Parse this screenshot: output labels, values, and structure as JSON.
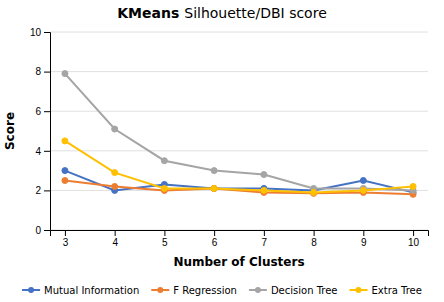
{
  "chart_data": {
    "type": "line",
    "title": "KMeans",
    "subtitle": "Silhouette/DBI score",
    "x_label": "Number of Clusters",
    "y_label": "Score",
    "x": [
      3,
      4,
      5,
      6,
      7,
      8,
      9,
      10
    ],
    "series": [
      {
        "name": "Mutual Information",
        "color": "#4472C4",
        "values": [
          3.0,
          2.0,
          2.3,
          2.1,
          2.1,
          2.0,
          2.5,
          1.9
        ]
      },
      {
        "name": "F Regression",
        "color": "#ED7D31",
        "values": [
          2.5,
          2.2,
          2.0,
          2.1,
          1.9,
          1.85,
          1.9,
          1.8
        ]
      },
      {
        "name": "Decision Tree",
        "color": "#A5A5A5",
        "values": [
          7.9,
          5.1,
          3.5,
          3.0,
          2.8,
          2.1,
          2.1,
          2.0
        ]
      },
      {
        "name": "Extra Tree",
        "color": "#FFC000",
        "values": [
          4.5,
          2.9,
          2.1,
          2.1,
          2.0,
          1.9,
          2.0,
          2.2
        ]
      }
    ],
    "xlim": [
      2.7,
      10.3
    ],
    "xticks": [
      3,
      4,
      5,
      6,
      7,
      8,
      9,
      10
    ],
    "ylim": [
      0,
      10
    ],
    "yticks": [
      0,
      2,
      4,
      6,
      8,
      10
    ],
    "grid": true,
    "legend": "bottom",
    "marker": "circle"
  }
}
